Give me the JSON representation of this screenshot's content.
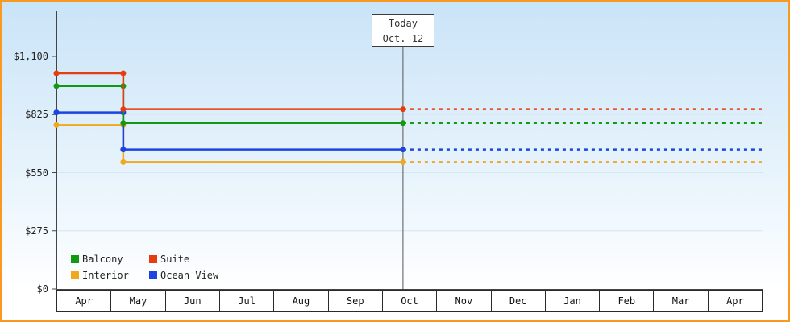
{
  "legend": {
    "items": [
      {
        "label": "Balcony",
        "color": "#119911"
      },
      {
        "label": "Suite",
        "color": "#e63c0f"
      },
      {
        "label": "Interior",
        "color": "#f0a81c"
      },
      {
        "label": "Ocean View",
        "color": "#1c44e0"
      }
    ]
  },
  "chart_data": {
    "type": "line",
    "title": "",
    "months": [
      "Apr",
      "May",
      "Jun",
      "Jul",
      "Aug",
      "Sep",
      "Oct",
      "Nov",
      "Dec",
      "Jan",
      "Feb",
      "Mar",
      "Apr"
    ],
    "ylim": [
      0,
      1100
    ],
    "y_tick_values": [
      1100,
      825,
      550,
      275,
      0
    ],
    "y_tick_labels": [
      "$1,100",
      "$825",
      "$550",
      "$275",
      "$0"
    ],
    "grid": "faint-horizontal",
    "legend_position": "bottom-left",
    "today": {
      "label": "Today",
      "date": "Oct. 12",
      "x_month_offset": 6.38
    },
    "series": [
      {
        "id": "interior",
        "name": "Interior",
        "color": "#f0a81c",
        "values_usd": {
          "start": 775,
          "after_drop": 600,
          "today": 600,
          "projected": 600
        },
        "points": [
          [
            0,
            775
          ],
          [
            1.23,
            775
          ],
          [
            1.23,
            600
          ],
          [
            6.38,
            600
          ]
        ],
        "projected": [
          [
            6.38,
            600
          ],
          [
            13,
            600
          ]
        ],
        "markers": [
          [
            0,
            775
          ],
          [
            1.23,
            775
          ],
          [
            1.23,
            600
          ],
          [
            6.38,
            600
          ]
        ]
      },
      {
        "id": "ocean-view",
        "name": "Ocean View",
        "color": "#1c44e0",
        "values_usd": {
          "start": 835,
          "after_drop": 660,
          "today": 660,
          "projected": 660
        },
        "points": [
          [
            0,
            835
          ],
          [
            1.23,
            835
          ],
          [
            1.23,
            660
          ],
          [
            6.38,
            660
          ]
        ],
        "projected": [
          [
            6.38,
            660
          ],
          [
            13,
            660
          ]
        ],
        "markers": [
          [
            0,
            835
          ],
          [
            1.23,
            835
          ],
          [
            1.23,
            660
          ],
          [
            6.38,
            660
          ]
        ]
      },
      {
        "id": "balcony",
        "name": "Balcony",
        "color": "#119911",
        "values_usd": {
          "start": 960,
          "after_drop": 785,
          "today": 785,
          "projected": 785
        },
        "points": [
          [
            0,
            960
          ],
          [
            1.23,
            960
          ],
          [
            1.23,
            785
          ],
          [
            6.38,
            785
          ]
        ],
        "projected": [
          [
            6.38,
            785
          ],
          [
            13,
            785
          ]
        ],
        "markers": [
          [
            0,
            960
          ],
          [
            1.23,
            960
          ],
          [
            1.23,
            785
          ],
          [
            6.38,
            785
          ]
        ]
      },
      {
        "id": "suite",
        "name": "Suite",
        "color": "#e63c0f",
        "values_usd": {
          "start": 1020,
          "after_drop": 850,
          "today": 850,
          "projected": 850
        },
        "points": [
          [
            0,
            1020
          ],
          [
            1.23,
            1020
          ],
          [
            1.23,
            850
          ],
          [
            6.38,
            850
          ]
        ],
        "projected": [
          [
            6.38,
            850
          ],
          [
            13,
            850
          ]
        ],
        "markers": [
          [
            0,
            1020
          ],
          [
            1.23,
            1020
          ],
          [
            1.23,
            850
          ],
          [
            6.38,
            850
          ]
        ]
      }
    ]
  }
}
